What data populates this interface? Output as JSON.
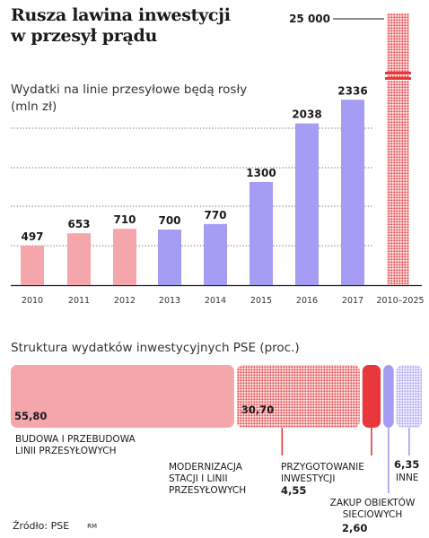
{
  "title": "Rusza lawina inwestycji w przesył prądu",
  "source": "Źródło: PSE",
  "credit": "RM",
  "colors": {
    "past": "#f4a6ab",
    "planned": "#a59cf4",
    "total": "#e8383c",
    "segment_red": "#e8383c",
    "segment_pink": "#f4a6ab",
    "segment_blue": "#a59cf4"
  },
  "chart_data": [
    {
      "type": "bar",
      "subtitle": "Wydatki na linie przesyłowe będą rosły (mln zł)",
      "categories": [
        "2010",
        "2011",
        "2012",
        "2013",
        "2014",
        "2015",
        "2016",
        "2017",
        "2010–2025"
      ],
      "values": [
        497,
        653,
        710,
        700,
        770,
        1300,
        2038,
        2336,
        25000
      ],
      "value_labels": [
        "497",
        "653",
        "710",
        "700",
        "770",
        "1300",
        "2038",
        "2336",
        "25 000"
      ],
      "bar_styles": [
        "past",
        "past",
        "past",
        "planned",
        "planned",
        "planned",
        "planned",
        "planned",
        "total-dotted-broken"
      ],
      "grid": true,
      "axis_break": true,
      "ylim": [
        0,
        2500
      ]
    },
    {
      "type": "bar",
      "subtitle": "Struktura wydatków inwestycyjnych PSE (proc.)",
      "orientation": "horizontal-stacked",
      "segments": [
        {
          "label": "BUDOWA I PRZEBUDOWA LINII PRZESYŁOWYCH",
          "value": 55.8,
          "value_label": "55,80",
          "style": "pink-solid"
        },
        {
          "label": "MODERNIZACJA STACJI I LINII PRZESYŁOWYCH",
          "value": 30.7,
          "value_label": "30,70",
          "style": "red-dotted"
        },
        {
          "label": "PRZYGOTOWANIE INWESTYCJI",
          "value": 4.55,
          "value_label": "4,55",
          "style": "red-solid"
        },
        {
          "label": "ZAKUP OBIEKTÓW SIECIOWYCH",
          "value": 2.6,
          "value_label": "2,60",
          "style": "blue-solid"
        },
        {
          "label": "INNE",
          "value": 6.35,
          "value_label": "6,35",
          "style": "blue-dotted"
        }
      ]
    }
  ]
}
